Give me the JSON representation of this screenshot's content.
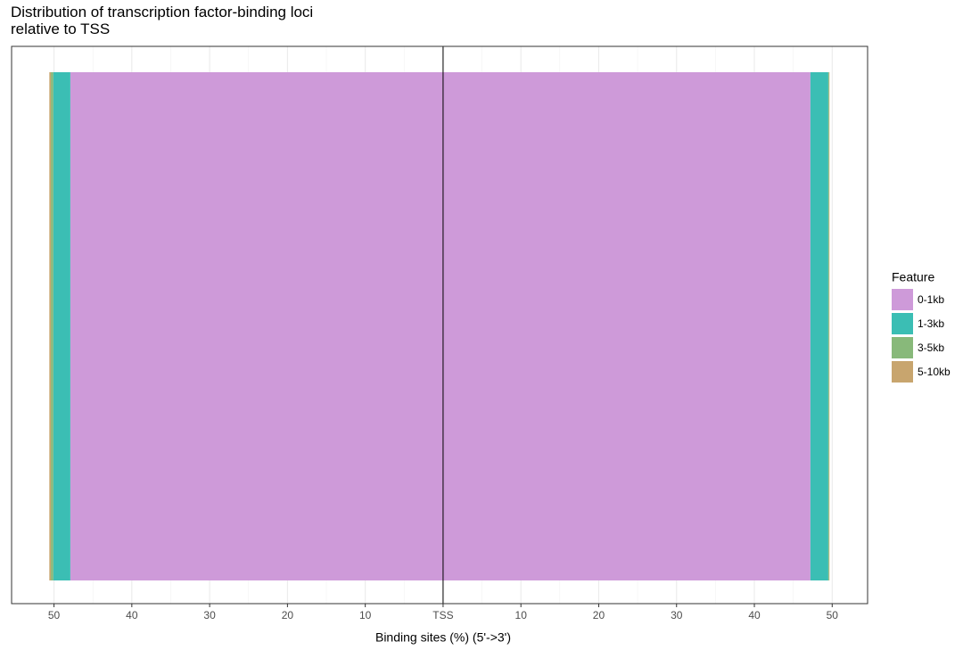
{
  "chart_data": {
    "type": "diverging_stacked_bar",
    "title": "Distribution of transcription factor-binding loci\nrelative to TSS",
    "x_label": "Binding sites (%) (5'->3')",
    "legend_title": "Feature",
    "legend_position": "right",
    "categories": [
      null,
      null
    ],
    "series": [
      {
        "name": "0-1kb",
        "color": "#ce9ad9",
        "values": [
          -47.9,
          47.2
        ]
      },
      {
        "name": "1-3kb",
        "color": "#3bbeb4",
        "values": [
          -2.2,
          2.3
        ]
      },
      {
        "name": "3-5kb",
        "color": "#88b97a",
        "values": [
          -0.3,
          0.1
        ]
      },
      {
        "name": "5-10kb",
        "color": "#c8a56e",
        "values": [
          -0.2,
          0.05
        ]
      }
    ],
    "xlim": [
      -55.45,
      54.55
    ],
    "xticks": [
      {
        "value": -50,
        "label": "50"
      },
      {
        "value": -40,
        "label": "40"
      },
      {
        "value": -30,
        "label": "30"
      },
      {
        "value": -20,
        "label": "20"
      },
      {
        "value": -10,
        "label": "10"
      },
      {
        "value": 0,
        "label": "TSS"
      },
      10,
      20,
      30,
      40,
      50
    ],
    "grid": true
  }
}
